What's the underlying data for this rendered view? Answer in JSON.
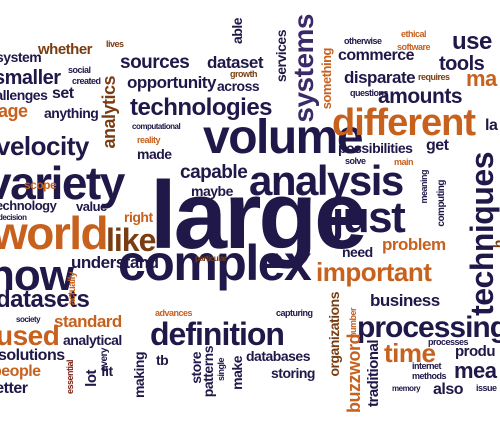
{
  "colors": {
    "navy": "#1f1848",
    "purple": "#3a2a6a",
    "orange": "#c7611e",
    "brown": "#7a3d12",
    "dark_red": "#7a1f12",
    "tan": "#b0823a"
  },
  "words": {
    "large": "large",
    "complex": "complex",
    "volume": "volume",
    "analysis": "analysis",
    "just": "just",
    "variety": "variety",
    "world": "world",
    "now": "now",
    "different": "different",
    "like": "like",
    "techniques": "techniques",
    "technologies": "technologies",
    "processing": "processing",
    "definition": "definition",
    "important": "important",
    "datasets": "datasets",
    "velocity": "velocity",
    "systems": "systems",
    "sources": "sources",
    "dataset": "dataset",
    "amounts": "amounts",
    "analytics": "analytics",
    "used": "used",
    "smaller": "smaller",
    "opportunity": "opportunity",
    "commerce": "commerce",
    "disparate": "disparate",
    "tools": "tools",
    "use": "use",
    "capable": "capable",
    "maybe": "maybe",
    "made": "made",
    "right": "right",
    "understand": "understand",
    "problem": "problem",
    "need": "need",
    "business": "business",
    "time": "time",
    "standard": "standard",
    "analytical": "analytical",
    "databases": "databases",
    "storing": "storing",
    "organizations": "organizations",
    "buzzword": "buzzword",
    "traditional": "traditional",
    "solutions": "solutions",
    "people": "people",
    "anything": "anything",
    "set": "set",
    "whether": "whether",
    "across": "across",
    "services": "services",
    "something": "something",
    "possibilities": "possibilities",
    "get": "get",
    "scope": "scope",
    "technology": "technology",
    "value": "value",
    "lot": "lot",
    "fit": "fit",
    "every": "every",
    "making": "making",
    "tb": "tb",
    "store": "store",
    "patterns": "patterns",
    "make": "make",
    "also": "also",
    "memory": "memory",
    "internet": "internet",
    "methods": "methods",
    "processes": "processes",
    "capturing": "capturing",
    "advances": "advances",
    "particular": "particular",
    "actually": "actually",
    "society": "society",
    "essential": "essential",
    "single": "single",
    "number": "number",
    "computational": "computational",
    "reality": "reality",
    "solve": "solve",
    "main": "main",
    "meaning": "meaning",
    "computing": "computing",
    "questions": "questions",
    "requires": "requires",
    "software": "software",
    "otherwise": "otherwise",
    "ethical": "ethical",
    "growth": "growth",
    "lives": "lives",
    "social": "social",
    "created": "created",
    "able": "able",
    "system": "system",
    "challenges": "challenges",
    "decision": "decision",
    "age": "age",
    "issue": "issue",
    "better": "better",
    "produ": "produ",
    "mea": "mea",
    "ma": "ma",
    "la": "la",
    "h": "h"
  }
}
